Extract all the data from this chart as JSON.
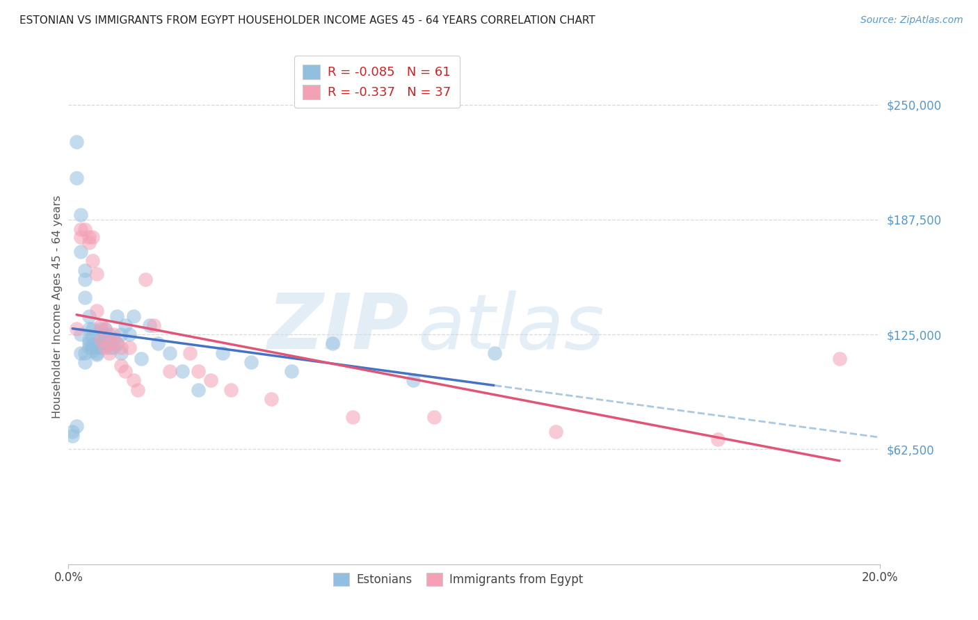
{
  "title": "ESTONIAN VS IMMIGRANTS FROM EGYPT HOUSEHOLDER INCOME AGES 45 - 64 YEARS CORRELATION CHART",
  "source": "Source: ZipAtlas.com",
  "ylabel": "Householder Income Ages 45 - 64 years",
  "xlim": [
    0.0,
    0.2
  ],
  "ylim": [
    0,
    280000
  ],
  "ytick_vals": [
    62500,
    125000,
    187500,
    250000
  ],
  "ytick_labels": [
    "$62,500",
    "$125,000",
    "$187,500",
    "$250,000"
  ],
  "blue_color": "#92bfdf",
  "pink_color": "#f4a0b5",
  "blue_line_color": "#4472c4",
  "pink_line_color": "#e05575",
  "blue_dashed_color": "#aac8e0",
  "background_color": "#ffffff",
  "grid_color": "#d8d8d8",
  "estonians_x": [
    0.001,
    0.001,
    0.002,
    0.002,
    0.002,
    0.003,
    0.003,
    0.003,
    0.003,
    0.004,
    0.004,
    0.004,
    0.004,
    0.004,
    0.005,
    0.005,
    0.005,
    0.005,
    0.005,
    0.006,
    0.006,
    0.006,
    0.006,
    0.006,
    0.007,
    0.007,
    0.007,
    0.007,
    0.008,
    0.008,
    0.008,
    0.008,
    0.009,
    0.009,
    0.009,
    0.009,
    0.01,
    0.01,
    0.01,
    0.01,
    0.011,
    0.011,
    0.012,
    0.012,
    0.013,
    0.013,
    0.014,
    0.015,
    0.016,
    0.018,
    0.02,
    0.022,
    0.025,
    0.028,
    0.032,
    0.038,
    0.045,
    0.055,
    0.065,
    0.085,
    0.105
  ],
  "estonians_y": [
    70000,
    72000,
    230000,
    210000,
    75000,
    190000,
    170000,
    125000,
    115000,
    160000,
    155000,
    145000,
    115000,
    110000,
    135000,
    128000,
    122000,
    120000,
    118000,
    128000,
    124000,
    120000,
    118000,
    116000,
    120000,
    118000,
    115000,
    114000,
    128000,
    124000,
    120000,
    118000,
    128000,
    125000,
    123000,
    120000,
    125000,
    122000,
    120000,
    118000,
    122000,
    118000,
    135000,
    120000,
    125000,
    115000,
    130000,
    125000,
    135000,
    112000,
    130000,
    120000,
    115000,
    105000,
    95000,
    115000,
    110000,
    105000,
    120000,
    100000,
    115000
  ],
  "egypt_x": [
    0.002,
    0.003,
    0.003,
    0.004,
    0.005,
    0.005,
    0.006,
    0.006,
    0.007,
    0.007,
    0.008,
    0.008,
    0.009,
    0.009,
    0.01,
    0.01,
    0.011,
    0.012,
    0.013,
    0.013,
    0.014,
    0.015,
    0.016,
    0.017,
    0.019,
    0.021,
    0.025,
    0.03,
    0.032,
    0.035,
    0.04,
    0.05,
    0.07,
    0.09,
    0.12,
    0.16,
    0.19
  ],
  "egypt_y": [
    128000,
    182000,
    178000,
    182000,
    178000,
    175000,
    165000,
    178000,
    158000,
    138000,
    130000,
    122000,
    128000,
    118000,
    120000,
    115000,
    125000,
    120000,
    118000,
    108000,
    105000,
    118000,
    100000,
    95000,
    155000,
    130000,
    105000,
    115000,
    105000,
    100000,
    95000,
    90000,
    80000,
    80000,
    72000,
    68000,
    112000
  ]
}
